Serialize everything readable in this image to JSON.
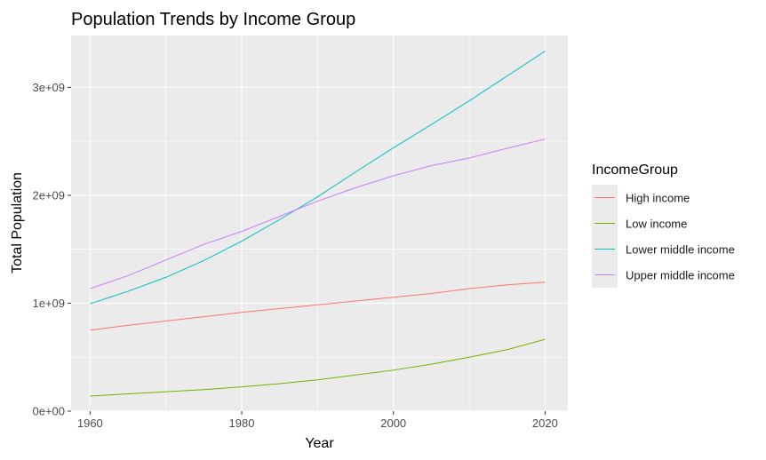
{
  "chart_data": {
    "type": "line",
    "title": "Population Trends by Income Group",
    "xlabel": "Year",
    "ylabel": "Total Population",
    "xlim": [
      1957.5,
      2023
    ],
    "ylim": [
      0,
      3480000000
    ],
    "x_ticks": [
      1960,
      1980,
      2000,
      2020
    ],
    "x_tick_labels": [
      "1960",
      "1980",
      "2000",
      "2020"
    ],
    "y_ticks": [
      0,
      1000000000,
      2000000000,
      3000000000
    ],
    "y_tick_labels": [
      "0e+00",
      "1e+09",
      "2e+09",
      "3e+09"
    ],
    "grid": true,
    "legend": {
      "title": "IncomeGroup",
      "position": "right"
    },
    "x": [
      1960,
      1965,
      1970,
      1975,
      1980,
      1985,
      1990,
      1995,
      2000,
      2005,
      2010,
      2015,
      2020
    ],
    "series": [
      {
        "name": "High income",
        "color": "#F8766D",
        "values": [
          750000000,
          795000000,
          835000000,
          875000000,
          915000000,
          950000000,
          985000000,
          1020000000,
          1055000000,
          1090000000,
          1135000000,
          1170000000,
          1195000000
        ]
      },
      {
        "name": "Low income",
        "color": "#7CAE00",
        "values": [
          140000000,
          160000000,
          180000000,
          200000000,
          225000000,
          255000000,
          290000000,
          335000000,
          380000000,
          435000000,
          500000000,
          570000000,
          665000000
        ]
      },
      {
        "name": "Lower middle income",
        "color": "#00BFC4",
        "values": [
          995000000,
          1110000000,
          1240000000,
          1395000000,
          1575000000,
          1775000000,
          1985000000,
          2215000000,
          2440000000,
          2655000000,
          2875000000,
          3105000000,
          3335000000
        ]
      },
      {
        "name": "Upper middle income",
        "color": "#C77CFF",
        "values": [
          1135000000,
          1255000000,
          1400000000,
          1545000000,
          1665000000,
          1805000000,
          1945000000,
          2070000000,
          2180000000,
          2275000000,
          2345000000,
          2435000000,
          2520000000
        ]
      }
    ]
  }
}
